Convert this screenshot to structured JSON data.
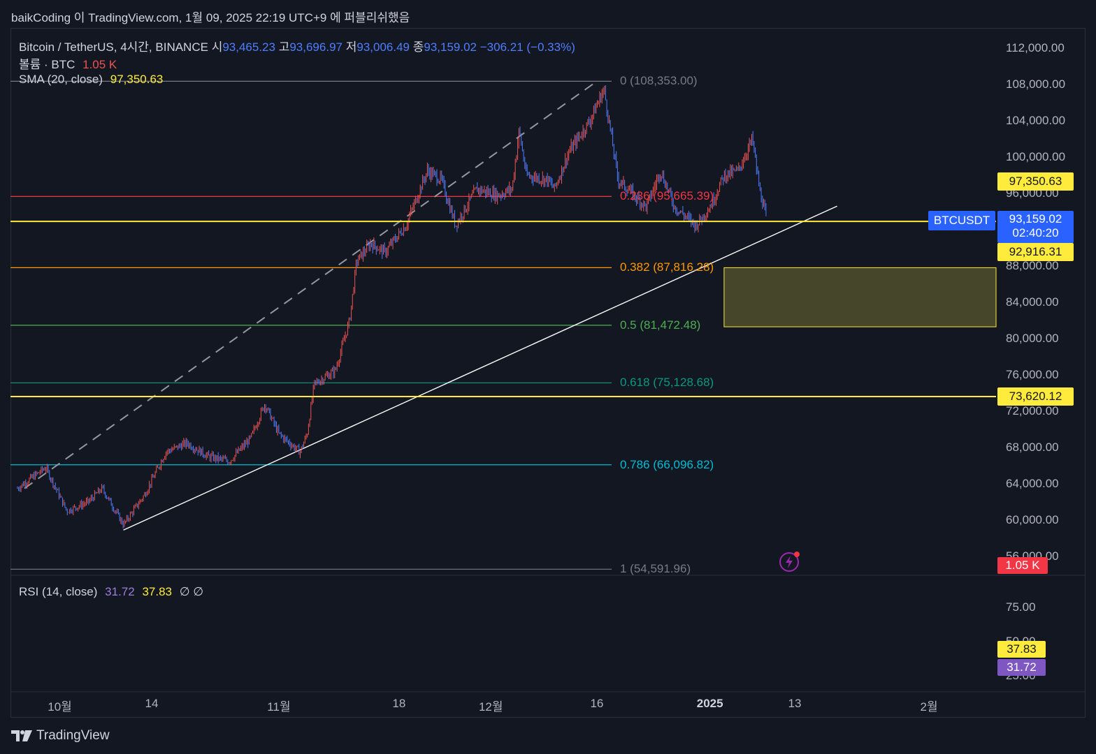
{
  "header": {
    "text": "baikCoding 이 TradingView.com, 1월 09, 2025 22:19 UTC+9 에 퍼블리쉬했음"
  },
  "legend": {
    "symbol": "Bitcoin / TetherUS, 4시간, BINANCE",
    "open_label": "시",
    "open": "93,465.23",
    "high_label": "고",
    "high": "93,696.97",
    "low_label": "저",
    "low": "93,006.49",
    "close_label": "종",
    "close": "93,159.02",
    "change": "−306.21 (−0.33%)",
    "volume_label": "볼륨 · BTC",
    "volume": "1.05 K",
    "sma_label": "SMA (20, close)",
    "sma": "97,350.63",
    "rsi_label": "RSI (14, close)",
    "rsi": "31.72",
    "rsi_ma": "37.83",
    "rsi_extra": "∅  ∅"
  },
  "price_tags": {
    "sma": "97,350.63",
    "symbol": "BTCUSDT",
    "last": "93,159.02",
    "countdown": "02:40:20",
    "level1": "92,916.31",
    "level2": "73,620.12",
    "volume": "1.05 K",
    "rsi_ma": "37.83",
    "rsi": "31.72"
  },
  "colors": {
    "up": "#ef5350",
    "down": "#4f7dff",
    "sma": "#ffeb3b",
    "fib_0": "#787b86",
    "fib_236": "#f23645",
    "fib_382": "#ff9800",
    "fib_5": "#4caf50",
    "fib_618": "#089981",
    "fib_786": "#00bcd4",
    "fib_1": "#787b86"
  },
  "footer": {
    "brand": "TradingView"
  },
  "chart_data": {
    "type": "candlestick",
    "symbol": "BTCUSDT",
    "interval": "4시간",
    "ylim": [
      54000,
      113000
    ],
    "y_ticks": [
      "112,000.00",
      "108,000.00",
      "104,000.00",
      "100,000.00",
      "96,000.00",
      "88,000.00",
      "84,000.00",
      "80,000.00",
      "76,000.00",
      "72,000.00",
      "68,000.00",
      "64,000.00",
      "60,000.00",
      "56,000.00"
    ],
    "y_tick_values": [
      112000,
      108000,
      104000,
      100000,
      96000,
      88000,
      84000,
      80000,
      76000,
      72000,
      68000,
      64000,
      60000,
      56000
    ],
    "x_ticks": [
      {
        "label": "10월",
        "date": "2024-10-01",
        "bold": false
      },
      {
        "label": "14",
        "date": "2024-10-14",
        "bold": false
      },
      {
        "label": "11월",
        "date": "2024-11-01",
        "bold": false
      },
      {
        "label": "18",
        "date": "2024-11-18",
        "bold": false
      },
      {
        "label": "12월",
        "date": "2024-12-01",
        "bold": false
      },
      {
        "label": "16",
        "date": "2024-12-16",
        "bold": false
      },
      {
        "label": "2025",
        "date": "2025-01-01",
        "bold": true
      },
      {
        "label": "13",
        "date": "2025-01-13",
        "bold": false
      },
      {
        "label": "2월",
        "date": "2025-02-01",
        "bold": false
      }
    ],
    "fib_levels": [
      {
        "ratio": "0",
        "price": 108353.0,
        "label": "0 (108,353.00)",
        "color_key": "fib_0"
      },
      {
        "ratio": "0.236",
        "price": 95665.39,
        "label": "0.236 (95,665.39)",
        "color_key": "fib_236"
      },
      {
        "ratio": "0.382",
        "price": 87816.28,
        "label": "0.382 (87,816.28)",
        "color_key": "fib_382"
      },
      {
        "ratio": "0.5",
        "price": 81472.48,
        "label": "0.5 (81,472.48)",
        "color_key": "fib_5"
      },
      {
        "ratio": "0.618",
        "price": 75128.68,
        "label": "0.618 (75,128.68)",
        "color_key": "fib_618"
      },
      {
        "ratio": "0.786",
        "price": 66096.82,
        "label": "0.786 (66,096.82)",
        "color_key": "fib_786"
      },
      {
        "ratio": "1",
        "price": 54591.96,
        "label": "1 (54,591.96)",
        "color_key": "fib_1"
      }
    ],
    "horizontal_lines": [
      92916.31,
      73620.12
    ],
    "zone": {
      "from_date": "2025-01-03",
      "to_date": "2025-02-05",
      "top": 87816.28,
      "bottom": 81300
    },
    "trendline": {
      "from": {
        "date": "2024-10-10",
        "price": 58900
      },
      "to": {
        "date": "2025-01-19",
        "price": 94600
      }
    },
    "fib_trend": {
      "from": {
        "date": "2024-09-26",
        "price": 63500
      },
      "to": {
        "date": "2024-12-16",
        "price": 108353
      }
    },
    "price_path": [
      {
        "date": "2024-09-25",
        "price": 63500
      },
      {
        "date": "2024-09-29",
        "price": 65800
      },
      {
        "date": "2024-10-02",
        "price": 61000
      },
      {
        "date": "2024-10-05",
        "price": 62000
      },
      {
        "date": "2024-10-07",
        "price": 63500
      },
      {
        "date": "2024-10-10",
        "price": 59500
      },
      {
        "date": "2024-10-13",
        "price": 62800
      },
      {
        "date": "2024-10-16",
        "price": 67500
      },
      {
        "date": "2024-10-19",
        "price": 68500
      },
      {
        "date": "2024-10-22",
        "price": 67000
      },
      {
        "date": "2024-10-25",
        "price": 66500
      },
      {
        "date": "2024-10-28",
        "price": 69000
      },
      {
        "date": "2024-10-30",
        "price": 72800
      },
      {
        "date": "2024-11-01",
        "price": 69500
      },
      {
        "date": "2024-11-04",
        "price": 67500
      },
      {
        "date": "2024-11-05",
        "price": 69500
      },
      {
        "date": "2024-11-06",
        "price": 75000
      },
      {
        "date": "2024-11-09",
        "price": 76500
      },
      {
        "date": "2024-11-11",
        "price": 82000
      },
      {
        "date": "2024-11-12",
        "price": 88500
      },
      {
        "date": "2024-11-14",
        "price": 90500
      },
      {
        "date": "2024-11-16",
        "price": 89500
      },
      {
        "date": "2024-11-19",
        "price": 92500
      },
      {
        "date": "2024-11-22",
        "price": 98500
      },
      {
        "date": "2024-11-24",
        "price": 97500
      },
      {
        "date": "2024-11-26",
        "price": 92500
      },
      {
        "date": "2024-11-29",
        "price": 96500
      },
      {
        "date": "2024-12-02",
        "price": 95800
      },
      {
        "date": "2024-12-04",
        "price": 96500
      },
      {
        "date": "2024-12-05",
        "price": 103000
      },
      {
        "date": "2024-12-06",
        "price": 98000
      },
      {
        "date": "2024-12-09",
        "price": 97500
      },
      {
        "date": "2024-12-10",
        "price": 96500
      },
      {
        "date": "2024-12-12",
        "price": 100500
      },
      {
        "date": "2024-12-15",
        "price": 104000
      },
      {
        "date": "2024-12-17",
        "price": 107500
      },
      {
        "date": "2024-12-19",
        "price": 97500
      },
      {
        "date": "2024-12-21",
        "price": 96000
      },
      {
        "date": "2024-12-23",
        "price": 94500
      },
      {
        "date": "2024-12-25",
        "price": 98500
      },
      {
        "date": "2024-12-27",
        "price": 94500
      },
      {
        "date": "2024-12-30",
        "price": 92500
      },
      {
        "date": "2025-01-01",
        "price": 94500
      },
      {
        "date": "2025-01-03",
        "price": 98000
      },
      {
        "date": "2025-01-05",
        "price": 98500
      },
      {
        "date": "2025-01-07",
        "price": 102000
      },
      {
        "date": "2025-01-08",
        "price": 96500
      },
      {
        "date": "2025-01-09",
        "price": 93159
      }
    ],
    "rsi_ticks": [
      "75.00",
      "50.00",
      "25.00"
    ],
    "rsi_tick_values": [
      75,
      50,
      25
    ]
  }
}
